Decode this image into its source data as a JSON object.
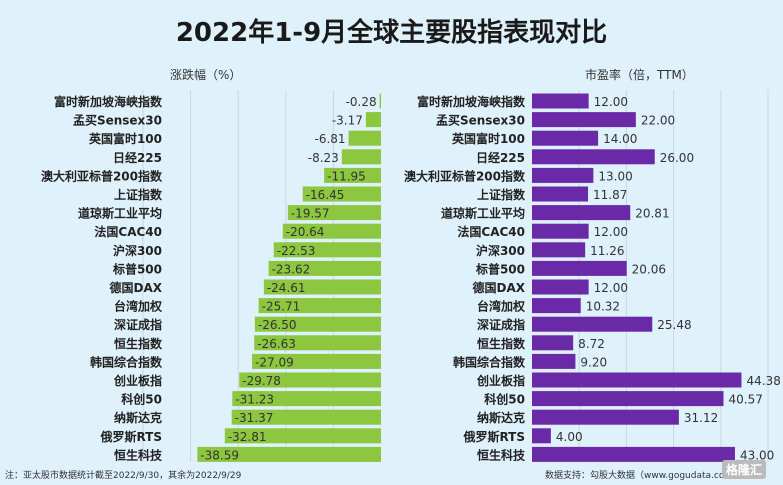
{
  "title": "2022年1-9月全球主要股指表现对比",
  "chart_data": [
    {
      "type": "bar",
      "orientation": "horizontal",
      "title": "涨跌幅（%）",
      "color": "#8dc63f",
      "categories": [
        "富时新加坡海峡指数",
        "孟买Sensex30",
        "英国富时100",
        "日经225",
        "澳大利亚标普200指数",
        "上证指数",
        "道琼斯工业平均",
        "法国CAC40",
        "沪深300",
        "标普500",
        "德国DAX",
        "台湾加权",
        "深证成指",
        "恒生指数",
        "韩国综合指数",
        "创业板指",
        "科创50",
        "纳斯达克",
        "俄罗斯RTS",
        "恒生科技"
      ],
      "values": [
        -0.28,
        -3.17,
        -6.81,
        -8.23,
        -11.95,
        -16.45,
        -19.57,
        -20.64,
        -22.53,
        -23.62,
        -24.61,
        -25.71,
        -26.5,
        -26.63,
        -27.09,
        -29.78,
        -31.23,
        -31.37,
        -32.81,
        -38.59
      ],
      "labels": [
        "-0.28",
        "-3.17",
        "-6.81",
        "-8.23",
        "-11.95",
        "-16.45",
        "-19.57",
        "-20.64",
        "-22.53",
        "-23.62",
        "-24.61",
        "-25.71",
        "-26.50",
        "-26.63",
        "-27.09",
        "-29.78",
        "-31.23",
        "-31.37",
        "-32.81",
        "-38.59"
      ],
      "xlim": [
        -50,
        0
      ],
      "grid": true
    },
    {
      "type": "bar",
      "orientation": "horizontal",
      "title": "市盈率（倍，TTM）",
      "color": "#6a2aa8",
      "categories": [
        "富时新加坡海峡指数",
        "孟买Sensex30",
        "英国富时100",
        "日经225",
        "澳大利亚标普200指数",
        "上证指数",
        "道琼斯工业平均",
        "法国CAC40",
        "沪深300",
        "标普500",
        "德国DAX",
        "台湾加权",
        "深证成指",
        "恒生指数",
        "韩国综合指数",
        "创业板指",
        "科创50",
        "纳斯达克",
        "俄罗斯RTS",
        "恒生科技"
      ],
      "values": [
        12.0,
        22.0,
        14.0,
        26.0,
        13.0,
        11.87,
        20.81,
        12.0,
        11.26,
        20.06,
        12.0,
        10.32,
        25.48,
        8.72,
        9.2,
        44.38,
        40.57,
        31.12,
        4.0,
        43.0
      ],
      "labels": [
        "12.00",
        "22.00",
        "14.00",
        "26.00",
        "13.00",
        "11.87",
        "20.81",
        "12.00",
        "11.26",
        "20.06",
        "12.00",
        "10.32",
        "25.48",
        "8.72",
        "9.20",
        "44.38",
        "40.57",
        "31.12",
        "4.00",
        "43.00"
      ],
      "xlim": [
        0,
        50
      ],
      "grid": true
    }
  ],
  "footnote": "注：亚太股市数据统计截至2022/9/30，其余为2022/9/29",
  "source": "数据支持：勾股大数据（www.gogudata.com）",
  "logo": "格隆汇"
}
